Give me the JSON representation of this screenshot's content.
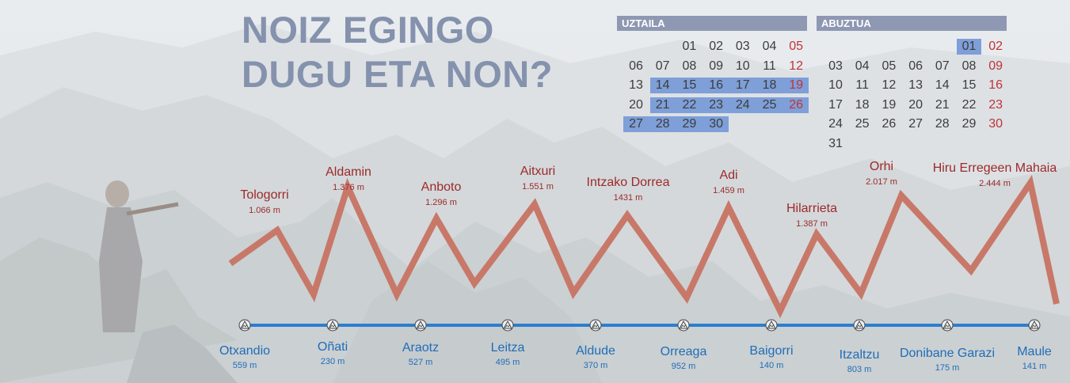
{
  "title": {
    "line1": "NOIZ EGINGO",
    "line2": "DUGU ETA NON?"
  },
  "calendars": [
    {
      "month": "UZTAILA",
      "weeks": [
        [
          "",
          "",
          "01",
          "02",
          "03",
          "04",
          "05"
        ],
        [
          "06",
          "07",
          "08",
          "09",
          "10",
          "11",
          "12"
        ],
        [
          "13",
          "14",
          "15",
          "16",
          "17",
          "18",
          "19"
        ],
        [
          "20",
          "21",
          "22",
          "23",
          "24",
          "25",
          "26"
        ],
        [
          "27",
          "28",
          "29",
          "30",
          "",
          "",
          ""
        ]
      ],
      "highlighted": [
        "14",
        "15",
        "16",
        "17",
        "18",
        "19",
        "21",
        "22",
        "23",
        "24",
        "25",
        "26",
        "27",
        "28",
        "29",
        "30"
      ]
    },
    {
      "month": "ABUZTUA",
      "weeks": [
        [
          "",
          "",
          "",
          "",
          "",
          "01",
          "02"
        ],
        [
          "03",
          "04",
          "05",
          "06",
          "07",
          "08",
          "09"
        ],
        [
          "10",
          "11",
          "12",
          "13",
          "14",
          "15",
          "16"
        ],
        [
          "17",
          "18",
          "19",
          "20",
          "21",
          "22",
          "23"
        ],
        [
          "24",
          "25",
          "26",
          "27",
          "28",
          "29",
          "30"
        ],
        [
          "31",
          "",
          "",
          "",
          "",
          "",
          ""
        ]
      ],
      "highlighted": [
        "01"
      ]
    }
  ],
  "peaks": [
    {
      "name": "Tologorri",
      "altitude": "1.066 m"
    },
    {
      "name": "Aldamin",
      "altitude": "1.376 m"
    },
    {
      "name": "Anboto",
      "altitude": "1.296 m"
    },
    {
      "name": "Aitxuri",
      "altitude": "1.551 m"
    },
    {
      "name": "Intzako Dorrea",
      "altitude": "1431 m"
    },
    {
      "name": "Adi",
      "altitude": "1.459 m"
    },
    {
      "name": "Hilarrieta",
      "altitude": "1.387 m"
    },
    {
      "name": "Orhi",
      "altitude": "2.017 m"
    },
    {
      "name": "Hiru Erregeen Mahaia",
      "altitude": "2.444 m"
    }
  ],
  "towns": [
    {
      "name": "Otxandio",
      "altitude": "559 m"
    },
    {
      "name": "Oñati",
      "altitude": "230 m"
    },
    {
      "name": "Araotz",
      "altitude": "527 m"
    },
    {
      "name": "Leitza",
      "altitude": "495 m"
    },
    {
      "name": "Aldude",
      "altitude": "370 m"
    },
    {
      "name": "Orreaga",
      "altitude": "952 m"
    },
    {
      "name": "Baigorri",
      "altitude": "140 m"
    },
    {
      "name": "Itzaltzu",
      "altitude": "803 m"
    },
    {
      "name": "Donibane Garazi",
      "altitude": "175 m"
    },
    {
      "name": "Maule",
      "altitude": "141 m"
    }
  ],
  "colors": {
    "title": "#8592ad",
    "calendar_header": "#8e98b3",
    "calendar_highlight": "#7e9fd8",
    "weekend": "#c0333a",
    "peak_text": "#9c2a2a",
    "profile_line": "#c87868",
    "town_text": "#1f6db8",
    "route_line": "#2a7fd0"
  },
  "icons": {
    "town_marker": "mountain-triangle-icon"
  }
}
